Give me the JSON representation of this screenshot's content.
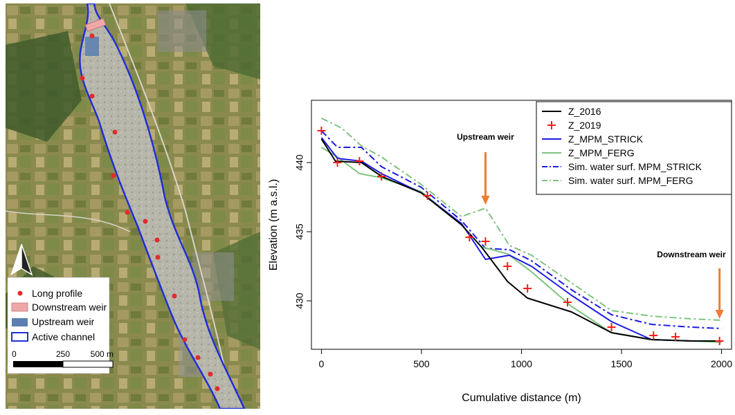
{
  "map": {
    "legend": [
      {
        "label": "Long profile",
        "symbol": "dot",
        "color": "#e32b2b"
      },
      {
        "label": "Downstream weir",
        "symbol": "rect",
        "color": "#f0a7a7"
      },
      {
        "label": "Upstream weir",
        "symbol": "rect",
        "color": "#5a7fb0"
      },
      {
        "label": "Active channel",
        "symbol": "outline",
        "color": "#1f2fd6"
      }
    ],
    "scale_bar": {
      "labels": [
        "0",
        "250",
        "500 m"
      ]
    },
    "north_arrow": "north-arrow-icon"
  },
  "chart_data": {
    "type": "line",
    "xlabel": "Cumulative distance (m)",
    "ylabel": "Elevation (m a.s.l.)",
    "xlim": [
      -50,
      2050
    ],
    "ylim": [
      426.5,
      444.5
    ],
    "xticks": [
      0,
      500,
      1000,
      1500,
      2000
    ],
    "yticks": [
      430,
      435,
      440
    ],
    "legend_position": "top-right",
    "series": [
      {
        "name": "Z_2016",
        "style": "solid",
        "color": "#000000",
        "x": [
          0,
          70,
          200,
          300,
          500,
          700,
          800,
          930,
          1030,
          1250,
          1450,
          1650,
          1850,
          2000
        ],
        "y": [
          441.7,
          440.1,
          440.0,
          439.0,
          437.8,
          435.5,
          433.9,
          431.4,
          430.2,
          429.2,
          427.7,
          427.2,
          427.1,
          427.1
        ]
      },
      {
        "name": "Z_2019",
        "style": "cross",
        "color": "#ff1a1a",
        "x": [
          0,
          80,
          190,
          300,
          530,
          740,
          820,
          930,
          1030,
          1230,
          1450,
          1660,
          1770,
          1990
        ],
        "y": [
          442.3,
          440.0,
          440.1,
          439.0,
          437.6,
          434.6,
          434.3,
          432.5,
          430.9,
          429.9,
          428.1,
          427.5,
          427.4,
          427.1
        ]
      },
      {
        "name": "Z_MPM_STRICK",
        "style": "solid",
        "color": "#1a1ae6",
        "x": [
          0,
          80,
          200,
          300,
          500,
          700,
          820,
          940,
          1050,
          1250,
          1450,
          1650,
          1850,
          2000
        ],
        "y": [
          441.8,
          440.3,
          440.1,
          439.2,
          437.8,
          435.6,
          433.0,
          433.3,
          432.5,
          430.4,
          428.5,
          427.2,
          427.1,
          427.1
        ]
      },
      {
        "name": "Z_MPM_FERG",
        "style": "solid",
        "color": "#7fc27f",
        "x": [
          0,
          80,
          190,
          300,
          500,
          700,
          800,
          930,
          1050,
          1250,
          1450,
          1650,
          1850,
          2000
        ],
        "y": [
          441.1,
          440.4,
          439.2,
          438.9,
          437.9,
          435.5,
          433.9,
          433.4,
          432.1,
          429.6,
          427.7,
          427.2,
          427.1,
          427.0
        ]
      },
      {
        "name": "Sim. water surf. MPM_STRICK",
        "style": "dashdot",
        "color": "#1a1ae6",
        "x": [
          0,
          80,
          200,
          300,
          500,
          700,
          820,
          940,
          1050,
          1250,
          1450,
          1650,
          1850,
          2000
        ],
        "y": [
          442.3,
          441.1,
          441.1,
          439.7,
          438.2,
          435.8,
          433.8,
          433.7,
          432.9,
          430.8,
          429.0,
          428.3,
          428.1,
          428.0
        ]
      },
      {
        "name": "Sim. water surf. MPM_FERG",
        "style": "dashdot",
        "color": "#7fc27f",
        "x": [
          0,
          100,
          200,
          300,
          500,
          700,
          820,
          940,
          1050,
          1250,
          1450,
          1650,
          1850,
          2000
        ],
        "y": [
          443.2,
          442.5,
          441.2,
          440.4,
          438.4,
          436.1,
          436.7,
          434.0,
          433.3,
          431.3,
          429.3,
          428.9,
          428.7,
          428.6
        ]
      }
    ],
    "annotations": [
      {
        "text": "Upstream weir",
        "x": 820
      },
      {
        "text": "Downstream weir",
        "x": 1990
      }
    ]
  }
}
